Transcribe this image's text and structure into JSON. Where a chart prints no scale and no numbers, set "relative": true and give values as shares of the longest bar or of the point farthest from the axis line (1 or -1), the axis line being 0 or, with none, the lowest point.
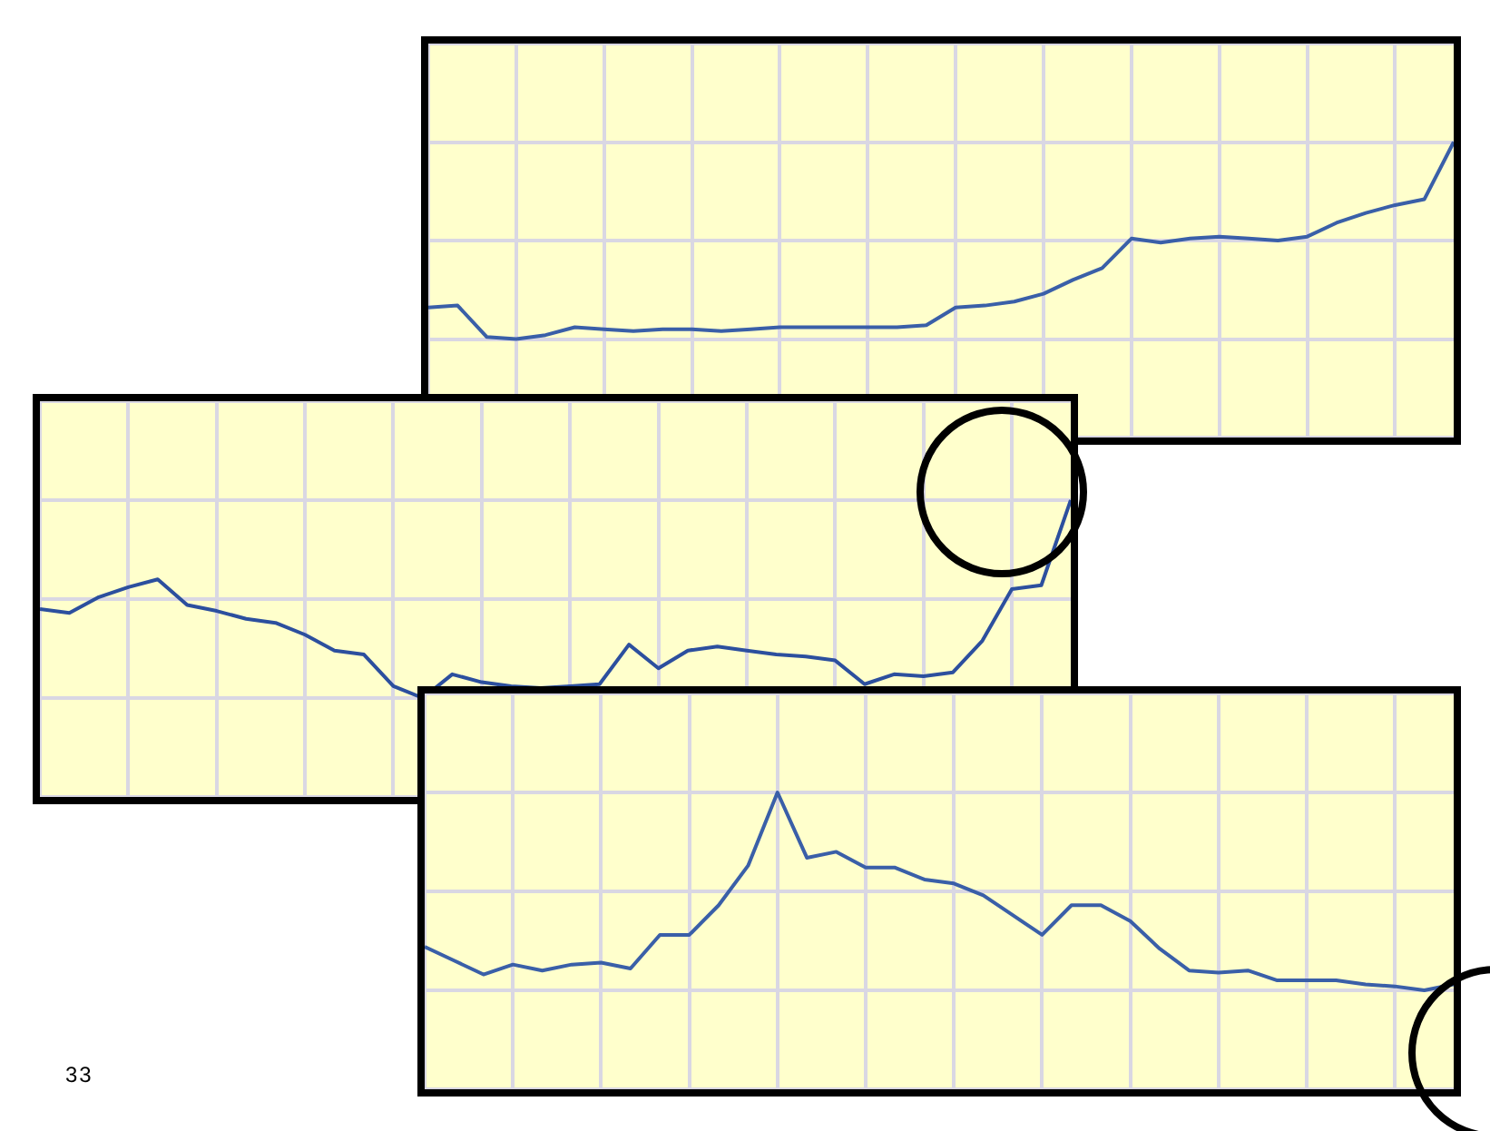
{
  "chart_data": [
    {
      "type": "line",
      "relative": true,
      "grid": true,
      "legend": false,
      "marker": "none",
      "annotations": [
        "33"
      ],
      "categories": [
        null,
        null,
        null,
        null,
        null,
        null,
        null,
        null,
        null,
        null,
        null,
        null,
        null,
        null,
        null,
        null,
        null,
        null,
        null,
        null,
        null,
        null,
        null,
        null,
        null,
        null,
        null,
        null,
        null,
        null,
        null,
        null,
        null,
        null,
        null,
        null
      ],
      "series": [
        {
          "color": "#3a5fa8",
          "values": [
            0.16,
            0.17,
            0.01,
            0,
            0.02,
            0.06,
            0.05,
            0.04,
            0.05,
            0.05,
            0.04,
            0.05,
            0.06,
            0.06,
            0.06,
            0.06,
            0.06,
            0.07,
            0.16,
            0.17,
            0.19,
            0.23,
            0.3,
            0.36,
            0.51,
            0.49,
            0.51,
            0.52,
            0.51,
            0.5,
            0.52,
            0.59,
            0.64,
            0.68,
            0.71,
            1
          ]
        }
      ]
    },
    {
      "type": "line",
      "relative": true,
      "grid": true,
      "legend": false,
      "marker": "none",
      "categories": [
        null,
        null,
        null,
        null,
        null,
        null,
        null,
        null,
        null,
        null,
        null,
        null,
        null,
        null,
        null,
        null,
        null,
        null,
        null,
        null,
        null,
        null,
        null,
        null,
        null,
        null,
        null,
        null,
        null,
        null,
        null,
        null,
        null,
        null,
        null,
        null
      ],
      "series": [
        {
          "color": "#2c4f9e",
          "values": [
            0.45,
            0.43,
            0.51,
            0.56,
            0.6,
            0.47,
            0.44,
            0.4,
            0.38,
            0.32,
            0.24,
            0.22,
            0.06,
            0,
            0.12,
            0.08,
            0.06,
            0.05,
            0.06,
            0.07,
            0.27,
            0.15,
            0.24,
            0.26,
            0.24,
            0.22,
            0.21,
            0.19,
            0.07,
            0.12,
            0.11,
            0.13,
            0.29,
            0.55,
            0.57,
            1
          ]
        }
      ]
    },
    {
      "type": "line",
      "relative": true,
      "grid": true,
      "legend": false,
      "marker": "none",
      "categories": [
        null,
        null,
        null,
        null,
        null,
        null,
        null,
        null,
        null,
        null,
        null,
        null,
        null,
        null,
        null,
        null,
        null,
        null,
        null,
        null,
        null,
        null,
        null,
        null,
        null,
        null,
        null,
        null,
        null,
        null,
        null,
        null,
        null,
        null,
        null,
        null
      ],
      "series": [
        {
          "color": "#3a5fa8",
          "values": [
            0.22,
            0.15,
            0.08,
            0.13,
            0.1,
            0.13,
            0.14,
            0.11,
            0.28,
            0.28,
            0.43,
            0.63,
            1,
            0.67,
            0.7,
            0.62,
            0.62,
            0.56,
            0.54,
            0.48,
            0.38,
            0.28,
            0.43,
            0.43,
            0.35,
            0.21,
            0.1,
            0.09,
            0.1,
            0.05,
            0.05,
            0.05,
            0.03,
            0.02,
            0,
            0.03
          ]
        }
      ]
    }
  ]
}
